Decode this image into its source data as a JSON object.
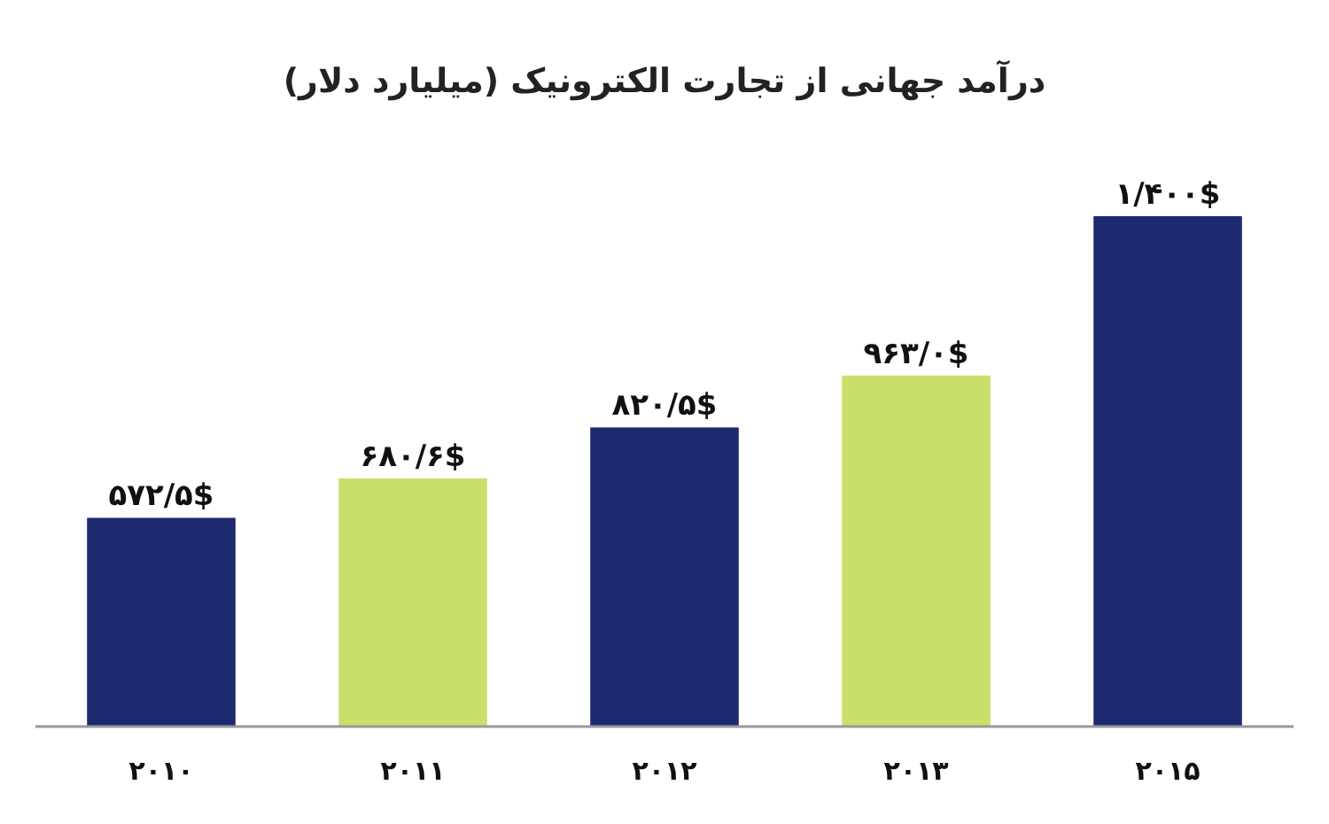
{
  "chart_data": {
    "type": "bar",
    "title": "درآمد جهانی از تجارت الکترونیک (میلیارد دلار)",
    "categories": [
      "۲۰۱۰",
      "۲۰۱۱",
      "۲۰۱۲",
      "۲۰۱۳",
      "۲۰۱۵"
    ],
    "values": [
      572.5,
      680.6,
      820.5,
      963.0,
      1400
    ],
    "value_labels": [
      "۵۷۲/۵$",
      "۶۸۰/۶$",
      "۸۲۰/۵$",
      "۹۶۳/۰$",
      "۱/۴۰۰$"
    ],
    "colors": [
      "#1d2a70",
      "#c8e06a",
      "#1d2a70",
      "#c8e06a",
      "#1d2a70"
    ],
    "ylim": [
      0,
      1400
    ]
  }
}
